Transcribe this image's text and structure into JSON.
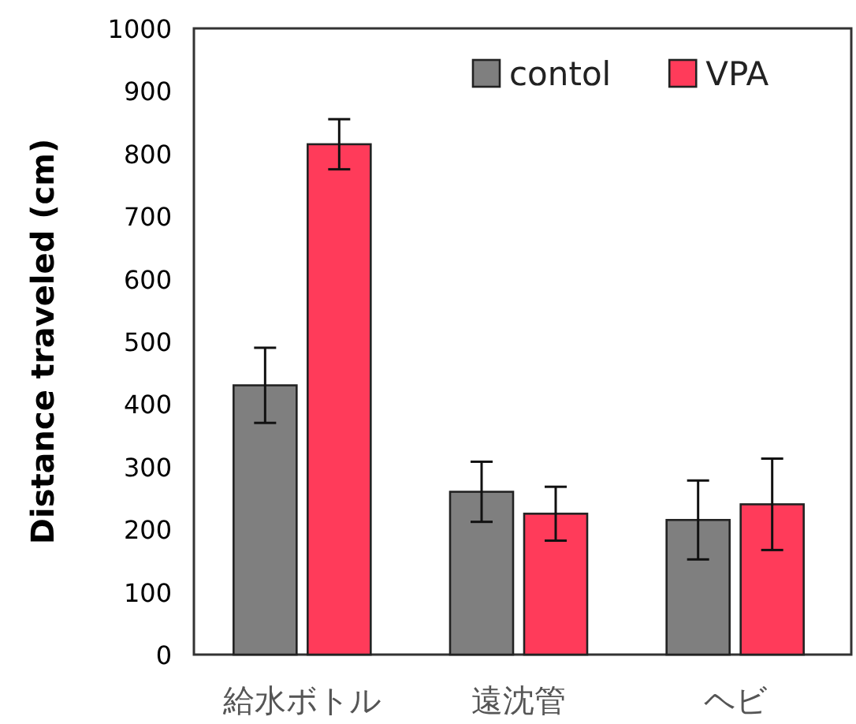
{
  "chart_data": {
    "type": "bar",
    "ylabel": "Distance traveled (cm)",
    "categories": [
      "給水ボトル",
      "遠沈管",
      "ヘビ"
    ],
    "series": [
      {
        "name": "contol",
        "color": "#7f7f7f",
        "values": [
          430,
          260,
          215
        ],
        "errors": [
          60,
          48,
          63
        ]
      },
      {
        "name": "VPA",
        "color": "#ff3b5a",
        "values": [
          815,
          225,
          240
        ],
        "errors": [
          40,
          43,
          73
        ]
      }
    ],
    "ylim": [
      0,
      1000
    ],
    "yticks": [
      0,
      100,
      200,
      300,
      400,
      500,
      600,
      700,
      800,
      900,
      1000
    ],
    "grid": false,
    "legend": "top right"
  }
}
